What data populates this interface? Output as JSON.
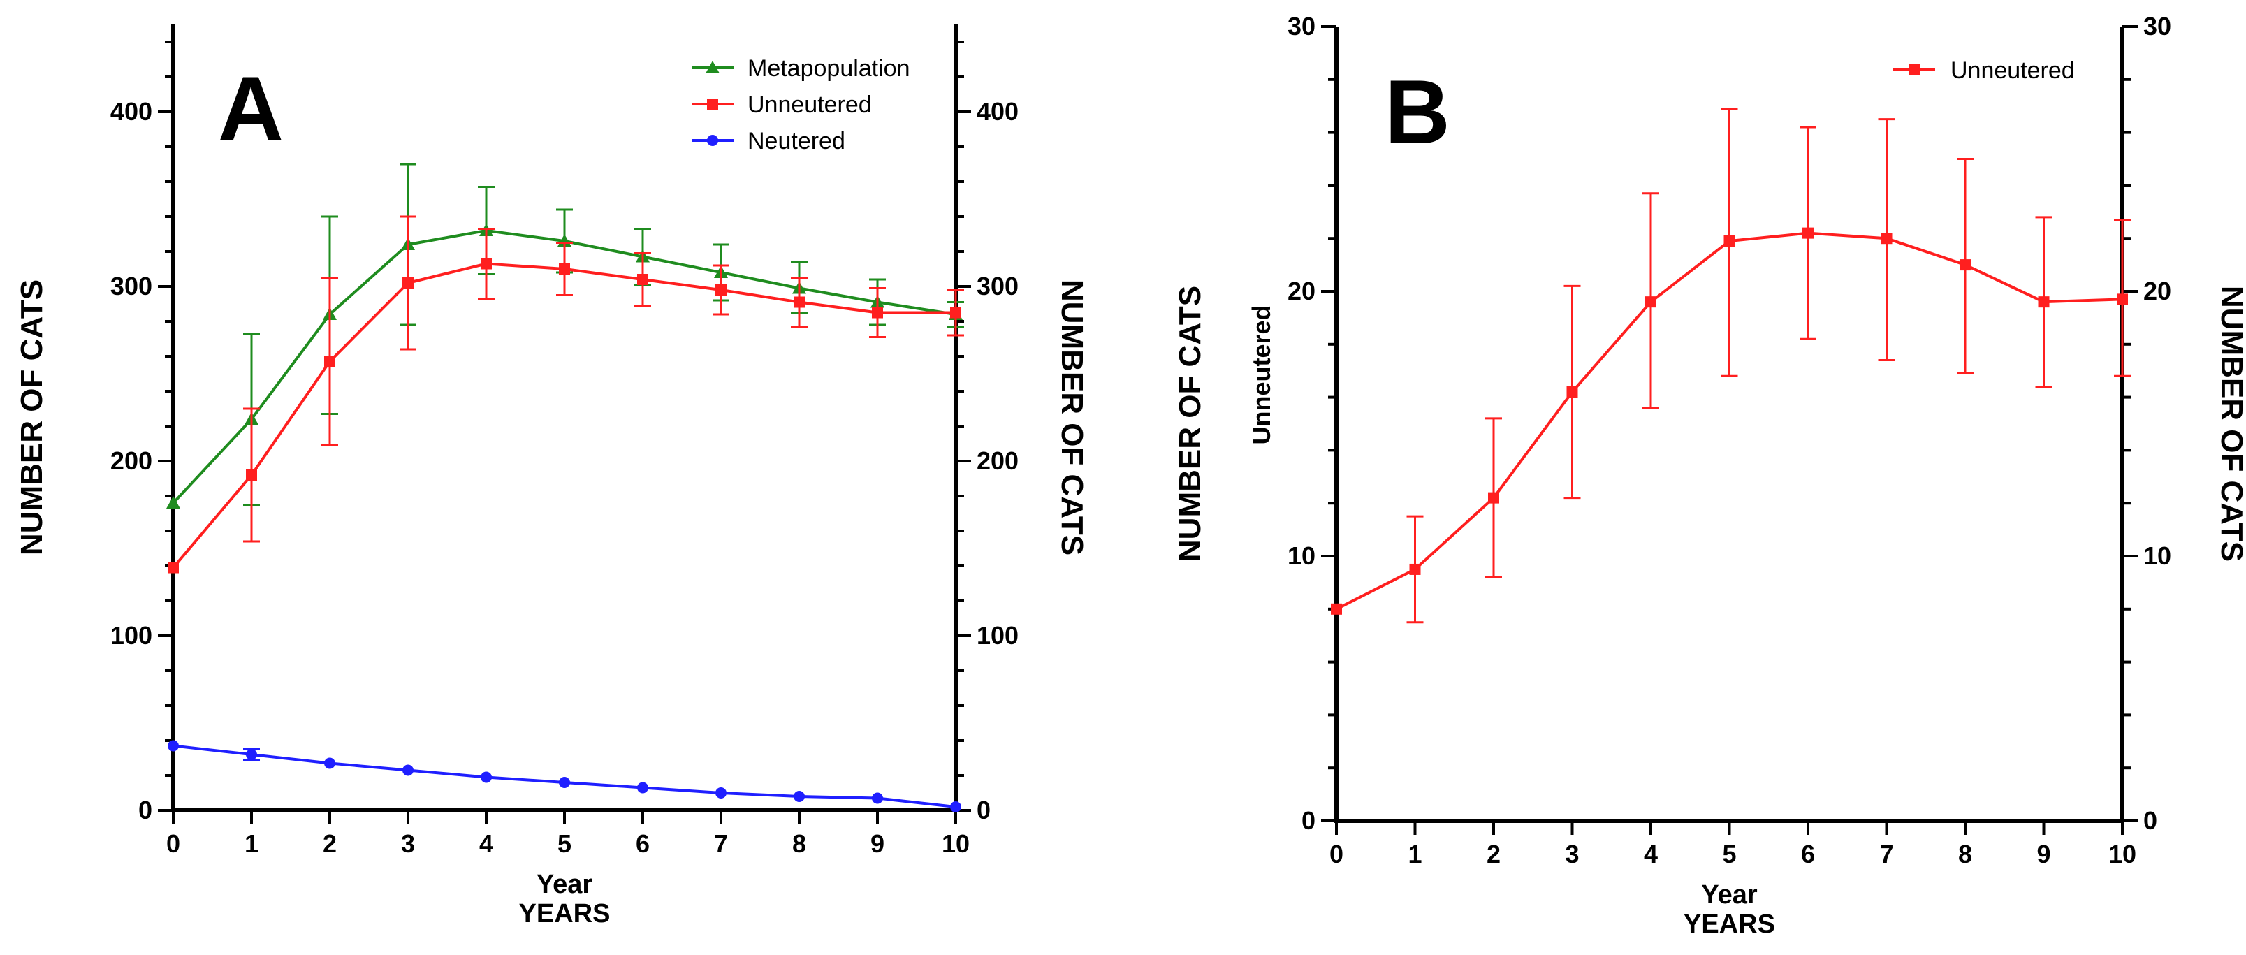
{
  "chart_data": [
    {
      "panel": "A",
      "type": "line",
      "xlabel": "Year",
      "xlabel_secondary": "YEARS",
      "ylabel_left": "NUMBER OF CATS",
      "ylabel_right": "NUMBER OF CATS",
      "xlim": [
        0,
        10
      ],
      "ylim": [
        0,
        450
      ],
      "x_ticks": [
        0,
        1,
        2,
        3,
        4,
        5,
        6,
        7,
        8,
        9,
        10
      ],
      "y_ticks": [
        0,
        100,
        200,
        300,
        400
      ],
      "y_tick_labels": [
        "0",
        "100",
        "200",
        "300",
        "400"
      ],
      "x": [
        0,
        1,
        2,
        3,
        4,
        5,
        6,
        7,
        8,
        9,
        10
      ],
      "legend_position": "top-right",
      "series": [
        {
          "name": "Metapopulation",
          "color": "#1f8c1f",
          "marker": "triangle",
          "values": [
            176,
            224,
            284,
            324,
            332,
            326,
            317,
            308,
            299,
            291,
            284
          ],
          "err_low": [
            176,
            175,
            227,
            278,
            307,
            308,
            301,
            292,
            285,
            278,
            277
          ],
          "err_high": [
            176,
            273,
            340,
            370,
            357,
            344,
            333,
            324,
            314,
            304,
            291
          ]
        },
        {
          "name": "Unneutered",
          "color": "#ff1f1f",
          "marker": "square",
          "values": [
            139,
            192,
            257,
            302,
            313,
            310,
            304,
            298,
            291,
            285,
            285
          ],
          "err_low": [
            139,
            154,
            209,
            264,
            293,
            295,
            289,
            284,
            277,
            271,
            272
          ],
          "err_high": [
            139,
            230,
            305,
            340,
            333,
            325,
            319,
            312,
            305,
            299,
            298
          ]
        },
        {
          "name": "Neutered",
          "color": "#1f1fff",
          "marker": "circle",
          "values": [
            37,
            32,
            27,
            23,
            19,
            16,
            13,
            10,
            8,
            7,
            2
          ],
          "err_low": [
            37,
            29,
            27,
            23,
            19,
            16,
            13,
            10,
            8,
            7,
            2
          ],
          "err_high": [
            37,
            35,
            27,
            23,
            19,
            16,
            13,
            10,
            8,
            7,
            2
          ]
        }
      ]
    },
    {
      "panel": "B",
      "type": "line",
      "xlabel": "Year",
      "xlabel_secondary": "YEARS",
      "ylabel_left": "NUMBER OF CATS",
      "ylabel_left_inner": "Unneutered",
      "ylabel_right": "NUMBER OF CATS",
      "xlim": [
        0,
        10
      ],
      "ylim": [
        0,
        30
      ],
      "x_ticks": [
        0,
        1,
        2,
        3,
        4,
        5,
        6,
        7,
        8,
        9,
        10
      ],
      "y_ticks": [
        0,
        10,
        20,
        30
      ],
      "y_tick_labels": [
        "0",
        "10",
        "20",
        "30"
      ],
      "x": [
        0,
        1,
        2,
        3,
        4,
        5,
        6,
        7,
        8,
        9,
        10
      ],
      "legend_position": "top-right",
      "series": [
        {
          "name": "Unneutered",
          "color": "#ff1f1f",
          "marker": "square",
          "values": [
            8.0,
            9.5,
            12.2,
            16.2,
            19.6,
            21.9,
            22.2,
            22.0,
            21.0,
            19.6,
            19.7
          ],
          "err_low": [
            8.0,
            7.5,
            9.2,
            12.2,
            15.6,
            16.8,
            18.2,
            17.4,
            16.9,
            16.4,
            16.8
          ],
          "err_high": [
            8.0,
            11.5,
            15.2,
            20.2,
            23.7,
            26.9,
            26.2,
            26.5,
            25.0,
            22.8,
            22.7
          ]
        }
      ]
    }
  ]
}
